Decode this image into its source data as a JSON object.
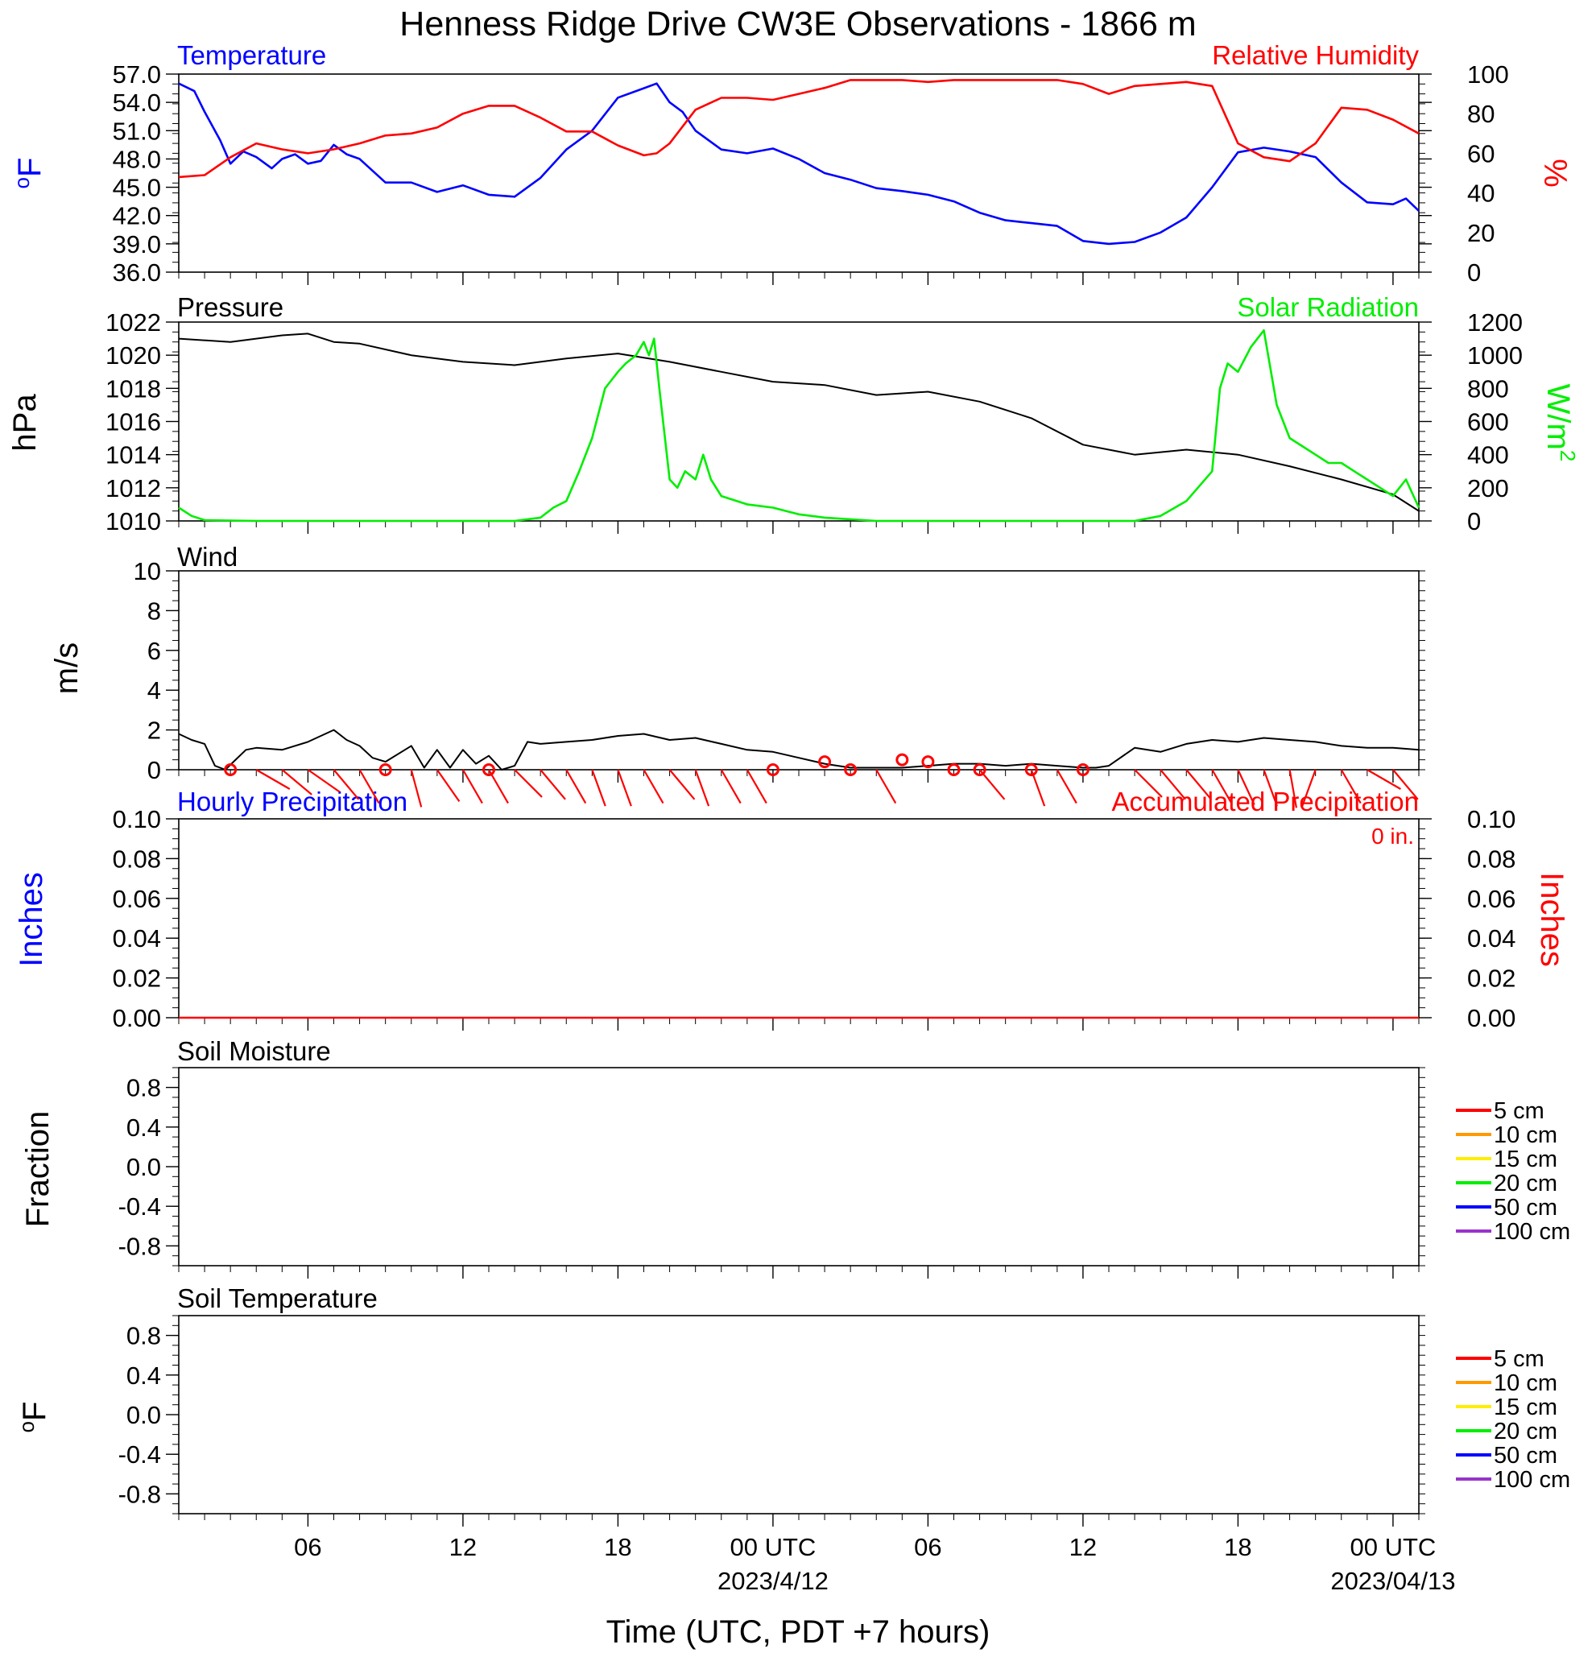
{
  "title": "Henness Ridge Drive CW3E Observations - 1866 m",
  "x_axis": {
    "label": "Time (UTC, PDT +7 hours)",
    "ticks": [
      {
        "hour": 6,
        "label": "06",
        "sub": ""
      },
      {
        "hour": 12,
        "label": "12",
        "sub": ""
      },
      {
        "hour": 18,
        "label": "18",
        "sub": ""
      },
      {
        "hour": 24,
        "label": "00 UTC",
        "sub": "2023/4/12"
      },
      {
        "hour": 30,
        "label": "06",
        "sub": ""
      },
      {
        "hour": 36,
        "label": "12",
        "sub": ""
      },
      {
        "hour": 42,
        "label": "18",
        "sub": ""
      },
      {
        "hour": 48,
        "label": "00 UTC",
        "sub": "2023/04/13"
      }
    ],
    "range_hours": [
      1,
      49
    ]
  },
  "chart_data": [
    {
      "type": "line",
      "panel": "temperature_rh",
      "left_title": "Temperature",
      "right_title": "Relative Humidity",
      "left_ylabel": "oF",
      "right_ylabel": "%",
      "left_ylim": [
        36,
        57
      ],
      "left_ticks": [
        "57.0",
        "54.0",
        "51.0",
        "48.0",
        "45.0",
        "42.0",
        "39.0",
        "36.0"
      ],
      "right_ylim": [
        0,
        100
      ],
      "right_ticks": [
        "100",
        "80",
        "60",
        "40",
        "20",
        "0"
      ],
      "colors": {
        "left": "#0000ff",
        "right": "#ff0000"
      },
      "series": [
        {
          "axis": "left",
          "color": "#0000ff",
          "x": [
            1,
            1.6,
            2,
            2.6,
            3,
            3.5,
            4,
            4.6,
            5,
            5.5,
            6,
            6.5,
            7,
            7.5,
            8,
            9,
            10,
            11,
            12,
            13,
            14,
            15,
            16,
            17,
            18,
            19,
            19.5,
            20,
            20.5,
            21,
            22,
            23,
            24,
            25,
            26,
            27,
            28,
            29,
            30,
            31,
            32,
            33,
            34,
            35,
            36,
            37,
            38,
            39,
            40,
            41,
            42,
            43,
            44,
            45,
            46,
            47,
            48,
            48.5,
            49
          ],
          "y": [
            56,
            55.2,
            53,
            50,
            47.5,
            48.8,
            48.2,
            47,
            48,
            48.5,
            47.5,
            47.8,
            49.5,
            48.5,
            48,
            45.5,
            45.5,
            44.5,
            45.2,
            44.2,
            44,
            46,
            49,
            51,
            54.5,
            55.5,
            56,
            54,
            53,
            51,
            49,
            48.6,
            49.1,
            48,
            46.5,
            45.8,
            44.9,
            44.6,
            44.2,
            43.5,
            42.3,
            41.5,
            41.2,
            40.9,
            39.3,
            39,
            39.2,
            40.2,
            41.8,
            45,
            48.7,
            49.2,
            48.8,
            48.2,
            45.5,
            43.4,
            43.2,
            43.8,
            42.5
          ]
        },
        {
          "axis": "right",
          "color": "#ff0000",
          "x": [
            1,
            2,
            3,
            4,
            5,
            6,
            7,
            8,
            9,
            10,
            11,
            12,
            13,
            14,
            15,
            16,
            17,
            18,
            19,
            19.5,
            20,
            21,
            22,
            23,
            24,
            25,
            26,
            27,
            28,
            29,
            30,
            31,
            32,
            33,
            34,
            35,
            36,
            37,
            38,
            39,
            40,
            41,
            42,
            43,
            44,
            45,
            46,
            47,
            48,
            49
          ],
          "y": [
            48,
            49,
            58,
            65,
            62,
            60,
            62,
            65,
            69,
            70,
            73,
            80,
            84,
            84,
            78,
            71,
            71,
            64,
            59,
            60,
            65,
            82,
            88,
            88,
            87,
            90,
            93,
            97,
            97,
            97,
            96,
            97,
            97,
            97,
            97,
            97,
            95,
            90,
            94,
            95,
            96,
            94,
            65,
            58,
            56,
            65,
            83,
            82,
            77,
            70
          ]
        }
      ]
    },
    {
      "type": "line",
      "panel": "pressure_solar",
      "left_title": "Pressure",
      "right_title": "Solar Radiation",
      "left_ylabel": "hPa",
      "right_ylabel": "W/m",
      "right_ylabel_sup": "2",
      "left_ylim": [
        1010,
        1022
      ],
      "left_ticks": [
        "1022",
        "1020",
        "1018",
        "1016",
        "1014",
        "1012",
        "1010"
      ],
      "right_ylim": [
        0,
        1200
      ],
      "right_ticks": [
        "1200",
        "1000",
        "800",
        "600",
        "400",
        "200",
        "0"
      ],
      "colors": {
        "left": "#000000",
        "right": "#00ee00"
      },
      "series": [
        {
          "axis": "left",
          "color": "#000000",
          "x": [
            1,
            3,
            5,
            6,
            7,
            8,
            10,
            12,
            14,
            16,
            18,
            20,
            22,
            24,
            26,
            28,
            30,
            32,
            34,
            36,
            38,
            40,
            42,
            44,
            46,
            48,
            49
          ],
          "y": [
            1021,
            1020.8,
            1021.2,
            1021.3,
            1020.8,
            1020.7,
            1020,
            1019.6,
            1019.4,
            1019.8,
            1020.1,
            1019.6,
            1019,
            1018.4,
            1018.2,
            1017.6,
            1017.8,
            1017.2,
            1016.2,
            1014.6,
            1014,
            1014.3,
            1014,
            1013.3,
            1012.5,
            1011.6,
            1010.6
          ]
        },
        {
          "axis": "right",
          "color": "#00ee00",
          "x": [
            1,
            1.5,
            2,
            4,
            8,
            12,
            14,
            15,
            15.5,
            16,
            16.5,
            17,
            17.5,
            18,
            18.3,
            18.7,
            19,
            19.2,
            19.4,
            19.6,
            20,
            20.3,
            20.6,
            21,
            21.3,
            21.6,
            22,
            23,
            24,
            25,
            26,
            28,
            30,
            32,
            34,
            36,
            38,
            39,
            40,
            41,
            41.3,
            41.6,
            42,
            42.5,
            43,
            43.5,
            44,
            44.5,
            45,
            45.5,
            46,
            46.5,
            47,
            47.5,
            48,
            48.5,
            49
          ],
          "y": [
            80,
            30,
            5,
            0,
            0,
            0,
            0,
            20,
            80,
            120,
            300,
            500,
            800,
            900,
            950,
            1000,
            1080,
            1000,
            1100,
            800,
            250,
            200,
            300,
            250,
            400,
            250,
            150,
            100,
            80,
            40,
            20,
            0,
            0,
            0,
            0,
            0,
            0,
            30,
            120,
            300,
            800,
            950,
            900,
            1050,
            1150,
            700,
            500,
            450,
            400,
            350,
            350,
            300,
            250,
            200,
            150,
            250,
            80
          ]
        }
      ]
    },
    {
      "type": "line",
      "panel": "wind",
      "left_title": "Wind",
      "left_ylabel": "m/s",
      "left_ylim": [
        0,
        10
      ],
      "left_ticks": [
        "10",
        "8",
        "6",
        "4",
        "2",
        "0"
      ],
      "colors": {
        "speed": "#000000",
        "barbs": "#ff0000"
      },
      "series": [
        {
          "name": "",
          "color": "#000000",
          "x": [
            1,
            1.5,
            2,
            2.4,
            2.8,
            3.2,
            3.6,
            4,
            5,
            6,
            7,
            7.5,
            8,
            8.5,
            9,
            10,
            10.5,
            11,
            11.5,
            12,
            12.5,
            13,
            13.5,
            14,
            14.5,
            15,
            16,
            17,
            18,
            19,
            20,
            21,
            22,
            23,
            24,
            25,
            26,
            27,
            28,
            29,
            30,
            31,
            32,
            33,
            34,
            35,
            36,
            36.5,
            37,
            38,
            39,
            40,
            41,
            42,
            43,
            44,
            45,
            46,
            47,
            48,
            49
          ],
          "y": [
            1.8,
            1.5,
            1.3,
            0.2,
            0,
            0.5,
            1,
            1.1,
            1,
            1.4,
            2,
            1.5,
            1.2,
            0.6,
            0.4,
            1.2,
            0.1,
            1,
            0.1,
            1,
            0.3,
            0.7,
            0,
            0.2,
            1.4,
            1.3,
            1.4,
            1.5,
            1.7,
            1.8,
            1.5,
            1.6,
            1.3,
            1,
            0.9,
            0.6,
            0.3,
            0.1,
            0.1,
            0.1,
            0.2,
            0.3,
            0.3,
            0.2,
            0.3,
            0.2,
            0.1,
            0.1,
            0.2,
            1.1,
            0.9,
            1.3,
            1.5,
            1.4,
            1.6,
            1.5,
            1.4,
            1.2,
            1.1,
            1.1,
            1
          ]
        },
        {
          "name": "barbs",
          "color": "#ff0000",
          "x": [
            4,
            5,
            6,
            7,
            8,
            10,
            11,
            12,
            13,
            14,
            15,
            16,
            17,
            18,
            19,
            20,
            21,
            22,
            23,
            28,
            32,
            34,
            35,
            38,
            39,
            40,
            41,
            42,
            43,
            44,
            45,
            46,
            47,
            48
          ],
          "dir": [
            300,
            310,
            305,
            320,
            330,
            345,
            325,
            330,
            330,
            315,
            320,
            330,
            340,
            340,
            330,
            320,
            340,
            330,
            330,
            330,
            320,
            340,
            330,
            315,
            320,
            320,
            330,
            335,
            340,
            350,
            20,
            330,
            300,
            320
          ]
        },
        {
          "name": "calm",
          "color": "#ff0000",
          "x": [
            3,
            9,
            13,
            24,
            26,
            27,
            29,
            30,
            31,
            32,
            34,
            36
          ],
          "y": [
            0,
            0,
            0,
            0,
            0.4,
            0,
            0.5,
            0.4,
            0,
            0,
            0,
            0
          ]
        }
      ]
    },
    {
      "type": "line",
      "panel": "precipitation",
      "left_title": "Hourly Precipitation",
      "right_title": "Accumulated Precipitation",
      "annotation": "0 in.",
      "left_ylabel": "Inches",
      "right_ylabel": "Inches",
      "left_ylim": [
        0,
        0.1
      ],
      "left_ticks": [
        "0.10",
        "0.08",
        "0.06",
        "0.04",
        "0.02",
        "0.00"
      ],
      "right_ylim": [
        0,
        0.1
      ],
      "right_ticks": [
        "0.10",
        "0.08",
        "0.06",
        "0.04",
        "0.02",
        "0.00"
      ],
      "colors": {
        "left": "#0000ff",
        "right": "#ff0000"
      },
      "series": [
        {
          "axis": "right",
          "color": "#ff0000",
          "x": [
            1,
            49
          ],
          "y": [
            0,
            0
          ]
        }
      ]
    },
    {
      "type": "line",
      "panel": "soil_moisture",
      "left_title": "Soil Moisture",
      "left_ylabel": "Fraction",
      "left_ylim": [
        -1,
        1
      ],
      "left_ticks": [
        "0.8",
        "0.4",
        "0.0",
        "-0.4",
        "-0.8"
      ],
      "legend": [
        {
          "name": "5 cm",
          "color": "#ff0000"
        },
        {
          "name": "10 cm",
          "color": "#ff9900"
        },
        {
          "name": "15 cm",
          "color": "#ffee00"
        },
        {
          "name": "20 cm",
          "color": "#00ee00"
        },
        {
          "name": "50 cm",
          "color": "#0000ff"
        },
        {
          "name": "100 cm",
          "color": "#9933cc"
        }
      ],
      "series": []
    },
    {
      "type": "line",
      "panel": "soil_temperature",
      "left_title": "Soil Temperature",
      "left_ylabel": "oF",
      "left_ylim": [
        -1,
        1
      ],
      "left_ticks": [
        "0.8",
        "0.4",
        "0.0",
        "-0.4",
        "-0.8"
      ],
      "legend": [
        {
          "name": "5 cm",
          "color": "#ff0000"
        },
        {
          "name": "10 cm",
          "color": "#ff9900"
        },
        {
          "name": "15 cm",
          "color": "#ffee00"
        },
        {
          "name": "20 cm",
          "color": "#00ee00"
        },
        {
          "name": "50 cm",
          "color": "#0000ff"
        },
        {
          "name": "100 cm",
          "color": "#9933cc"
        }
      ],
      "series": []
    }
  ]
}
